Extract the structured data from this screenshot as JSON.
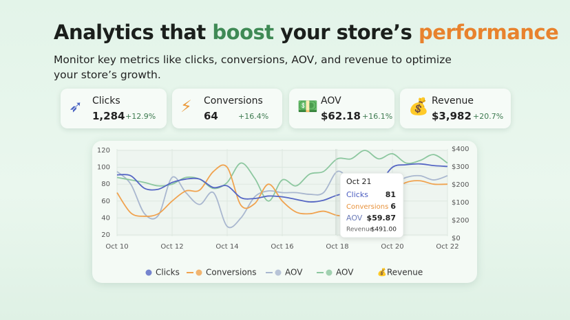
{
  "header": {
    "title_parts": [
      "Analytics that ",
      "boost",
      " your store’s ",
      "performance"
    ],
    "subtitle_lines": [
      "Monitor key metrics like clicks, conversions, AOV, and revenue to optimize",
      "your store’s growth."
    ]
  },
  "cards": [
    {
      "label": "Clicks",
      "value": "1,284",
      "change": "+12.9%"
    },
    {
      "label": "Conversions",
      "value": "64",
      "change": "+16.4%"
    },
    {
      "label": "AOV",
      "value": "$62.18",
      "change": "+16.1%"
    },
    {
      "label": "Revenue",
      "value": "$3,982",
      "change": "+20.7%"
    }
  ],
  "chart_data": {
    "type": "line",
    "categories": [
      "Oct 10",
      null,
      null,
      null,
      "Oct 12",
      null,
      null,
      null,
      "Oct 14",
      null,
      null,
      null,
      "Oct 16",
      null,
      null,
      null,
      "Oct 18",
      null,
      null,
      null,
      "Oct 20",
      null,
      null,
      null,
      "Oct 22"
    ],
    "series": [
      {
        "name": "Clicks",
        "color": "#5566c4",
        "values": [
          91,
          90,
          75,
          74,
          82,
          86,
          86,
          76,
          78,
          64,
          63,
          66,
          65,
          62,
          59,
          61,
          67,
          70,
          72,
          80,
          100,
          103,
          104,
          102,
          101
        ]
      },
      {
        "name": "Conversions",
        "color": "#f0a24e",
        "values": [
          70,
          46,
          42,
          45,
          60,
          72,
          73,
          95,
          100,
          55,
          57,
          80,
          60,
          47,
          45,
          48,
          43,
          42,
          45,
          48,
          72,
          82,
          84,
          80,
          80
        ]
      },
      {
        "name": "AOV",
        "color": "#a9b7cf",
        "values": [
          95,
          80,
          45,
          43,
          88,
          70,
          56,
          70,
          30,
          40,
          65,
          72,
          70,
          70,
          68,
          70,
          95,
          85,
          87,
          82,
          80,
          88,
          90,
          85,
          90
        ]
      },
      {
        "name": "AOV",
        "color": "#8cc79f",
        "values": [
          88,
          85,
          82,
          78,
          80,
          88,
          86,
          75,
          82,
          105,
          87,
          60,
          85,
          78,
          92,
          95,
          110,
          110,
          120,
          110,
          116,
          105,
          108,
          115,
          105
        ]
      }
    ],
    "legend_extra": "Revenue",
    "ylim": [
      20,
      120
    ],
    "yticks": [
      120,
      100,
      80,
      60,
      40,
      20
    ],
    "y2_labels": [
      "$400",
      "$300",
      "$200",
      "$100",
      "$200",
      "$0"
    ],
    "grid": true,
    "tooltip": {
      "date": "Oct 21",
      "rows": [
        [
          "Clicks",
          "81"
        ],
        [
          "Conversions",
          "6"
        ],
        [
          "AOV",
          "$59.87"
        ]
      ],
      "revenue_label": "Revenue",
      "revenue_value": "$491.00"
    }
  }
}
